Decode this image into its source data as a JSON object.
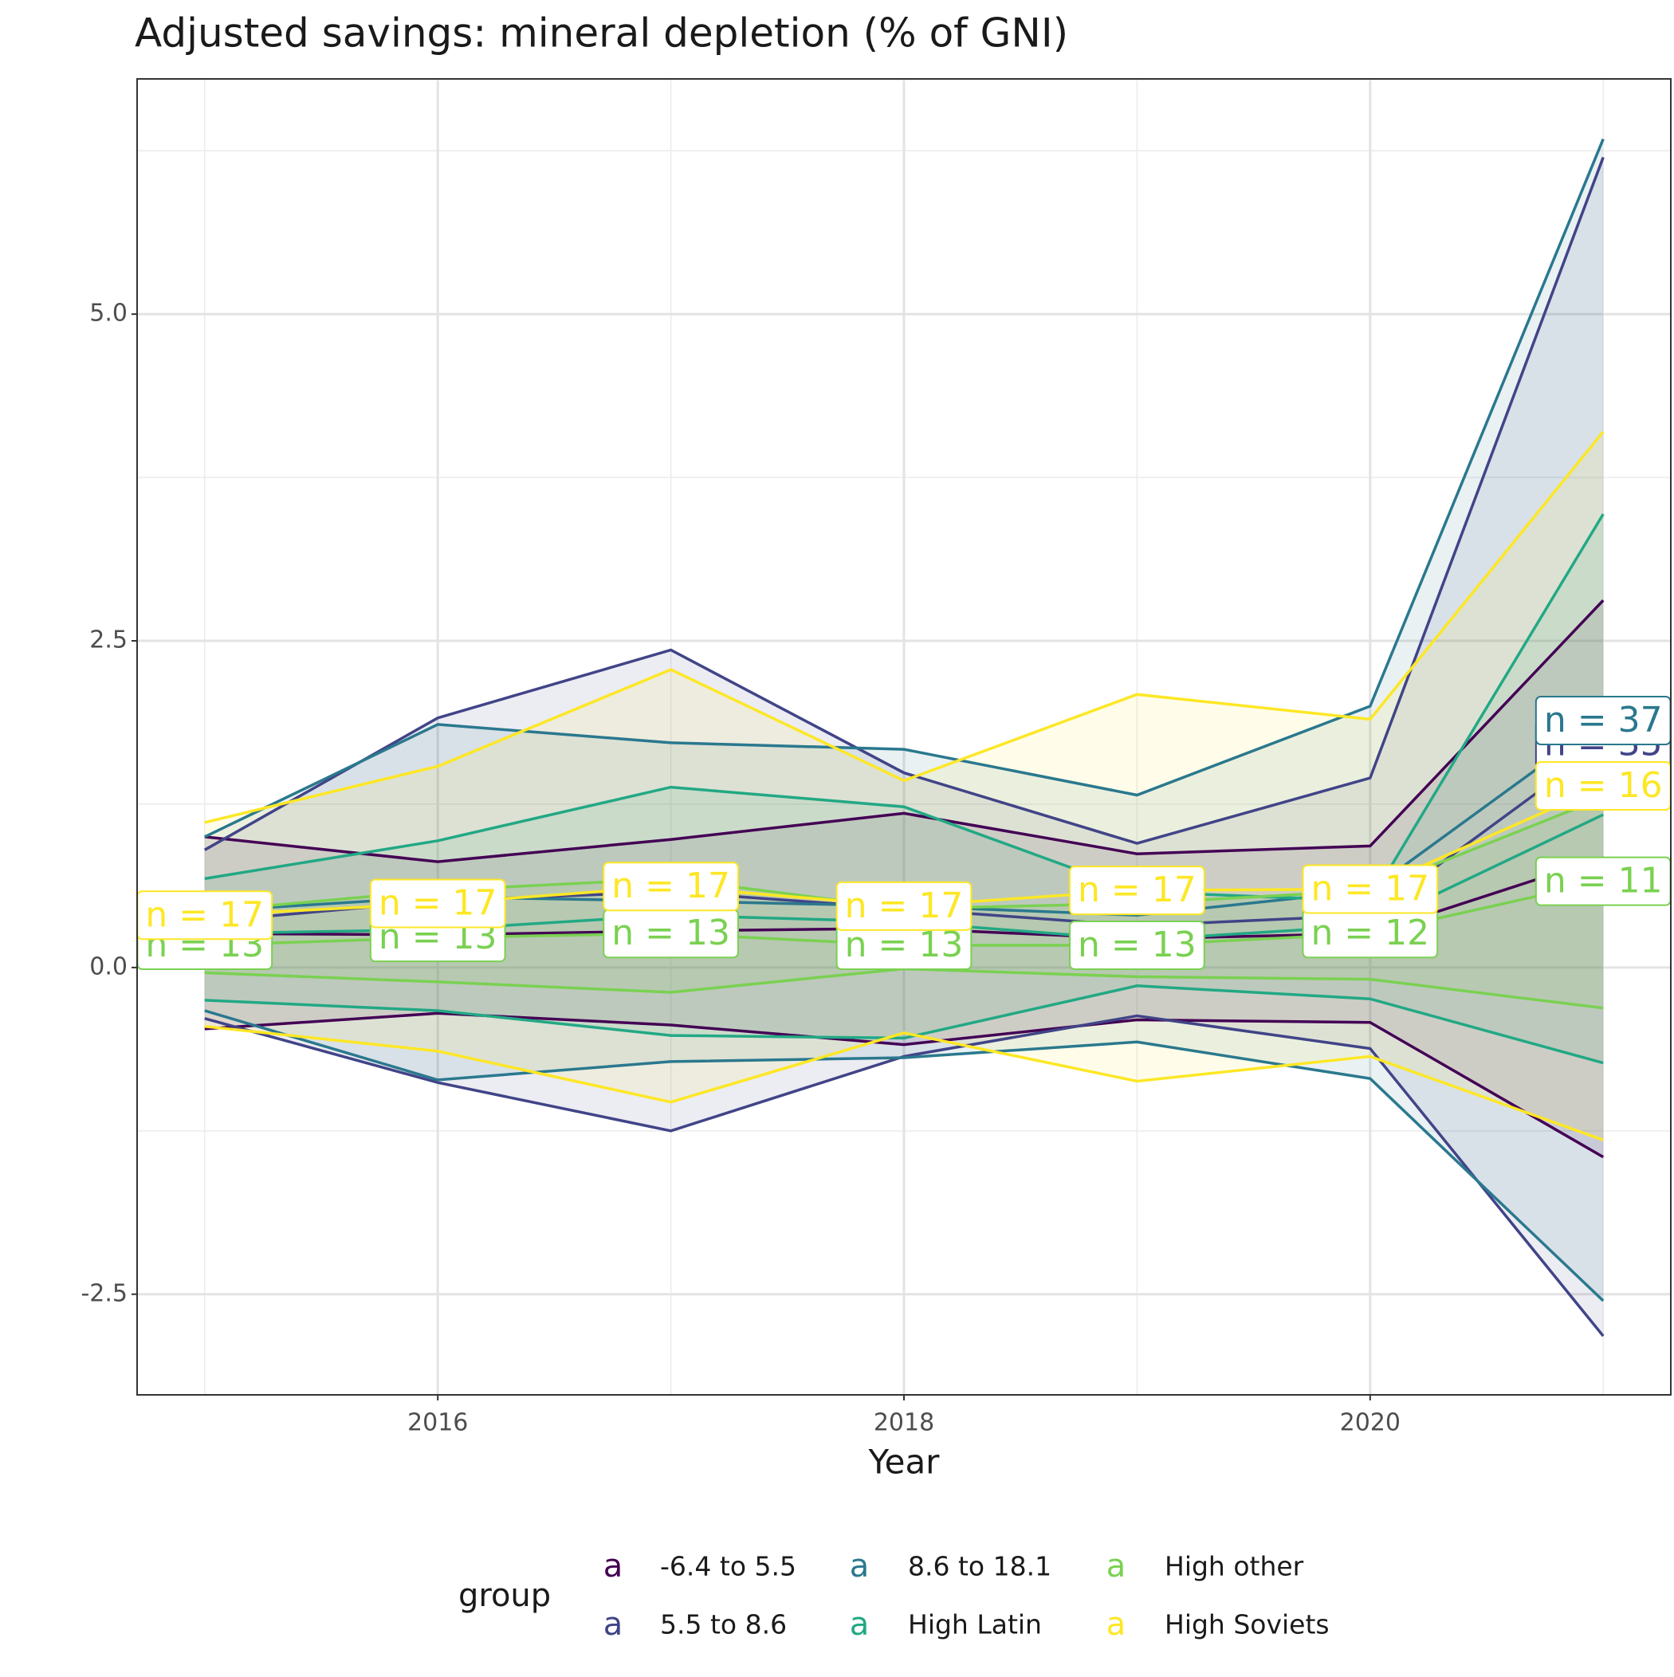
{
  "chart_data": {
    "type": "ribbon-line",
    "title": "Adjusted savings: mineral depletion (% of GNI)",
    "x_label": "Year",
    "legend_title": "group",
    "legend_key_glyph": "a",
    "x": [
      2015,
      2016,
      2017,
      2018,
      2019,
      2020,
      2021
    ],
    "xlim": [
      2014.71,
      2021.29
    ],
    "xticks": [
      2016,
      2018,
      2020
    ],
    "ylim": [
      -3.27,
      6.8
    ],
    "yticks": [
      {
        "value": -2.5,
        "label": "-2.5"
      },
      {
        "value": 0,
        "label": "0.0"
      },
      {
        "value": 2.5,
        "label": "2.5"
      },
      {
        "value": 5,
        "label": "5.0"
      }
    ],
    "grid": true,
    "legend_position": "bottom",
    "series": [
      {
        "name": "-6.4 to 5.5",
        "color": "#440154",
        "values": [
          0.26,
          0.25,
          0.28,
          0.3,
          0.22,
          0.26,
          0.84
        ],
        "upper": [
          1.0,
          0.81,
          0.98,
          1.18,
          0.87,
          0.93,
          2.81
        ],
        "lower": [
          -0.47,
          -0.35,
          -0.44,
          -0.59,
          -0.4,
          -0.42,
          -1.45
        ],
        "n_labels": [
          null,
          null,
          null,
          null,
          null,
          null,
          null
        ]
      },
      {
        "name": "5.5 to 8.6",
        "color": "#414487",
        "values": [
          0.35,
          0.51,
          0.58,
          0.45,
          0.32,
          0.4,
          1.71
        ],
        "upper": [
          0.9,
          1.91,
          2.43,
          1.49,
          0.95,
          1.45,
          6.2
        ],
        "lower": [
          -0.39,
          -0.88,
          -1.25,
          -0.68,
          -0.37,
          -0.62,
          -2.82
        ],
        "n_labels": [
          null,
          null,
          null,
          null,
          null,
          null,
          "n = 35"
        ]
      },
      {
        "name": "8.6 to 18.1",
        "color": "#2A788E",
        "values": [
          0.43,
          0.54,
          0.51,
          0.47,
          0.4,
          0.59,
          1.89
        ],
        "upper": [
          1.0,
          1.86,
          1.72,
          1.67,
          1.32,
          2.0,
          6.34
        ],
        "lower": [
          -0.33,
          -0.86,
          -0.72,
          -0.69,
          -0.57,
          -0.85,
          -2.55
        ],
        "n_labels": [
          null,
          null,
          null,
          null,
          null,
          null,
          "n = 37"
        ]
      },
      {
        "name": "High Latin",
        "color": "#22A884",
        "values": [
          0.26,
          0.29,
          0.4,
          0.35,
          0.21,
          0.32,
          1.17
        ],
        "upper": [
          0.68,
          0.97,
          1.38,
          1.23,
          0.58,
          0.51,
          3.47
        ],
        "lower": [
          -0.25,
          -0.33,
          -0.52,
          -0.54,
          -0.14,
          -0.24,
          -0.73
        ],
        "n_labels": [
          null,
          null,
          null,
          null,
          null,
          null,
          null
        ]
      },
      {
        "name": "High other",
        "color": "#7AD151",
        "values": [
          0.17,
          0.23,
          0.26,
          0.17,
          0.17,
          0.26,
          0.66
        ],
        "upper": [
          0.43,
          0.59,
          0.68,
          0.45,
          0.49,
          0.59,
          1.3
        ],
        "lower": [
          -0.04,
          -0.11,
          -0.19,
          -0.01,
          -0.07,
          -0.09,
          -0.31
        ],
        "n_labels": [
          "n = 13",
          "n = 13",
          "n = 13",
          "n = 13",
          "n = 13",
          "n = 12",
          "n = 11"
        ]
      },
      {
        "name": "High Soviets",
        "color": "#FDE725",
        "values": [
          0.4,
          0.49,
          0.62,
          0.47,
          0.59,
          0.6,
          1.39
        ],
        "upper": [
          1.11,
          1.54,
          2.28,
          1.43,
          2.09,
          1.9,
          4.1
        ],
        "lower": [
          -0.45,
          -0.64,
          -1.03,
          -0.5,
          -0.87,
          -0.68,
          -1.32
        ],
        "n_labels": [
          "n = 17",
          "n = 17",
          "n = 17",
          "n = 17",
          "n = 17",
          "n = 17",
          "n = 16"
        ]
      }
    ]
  }
}
